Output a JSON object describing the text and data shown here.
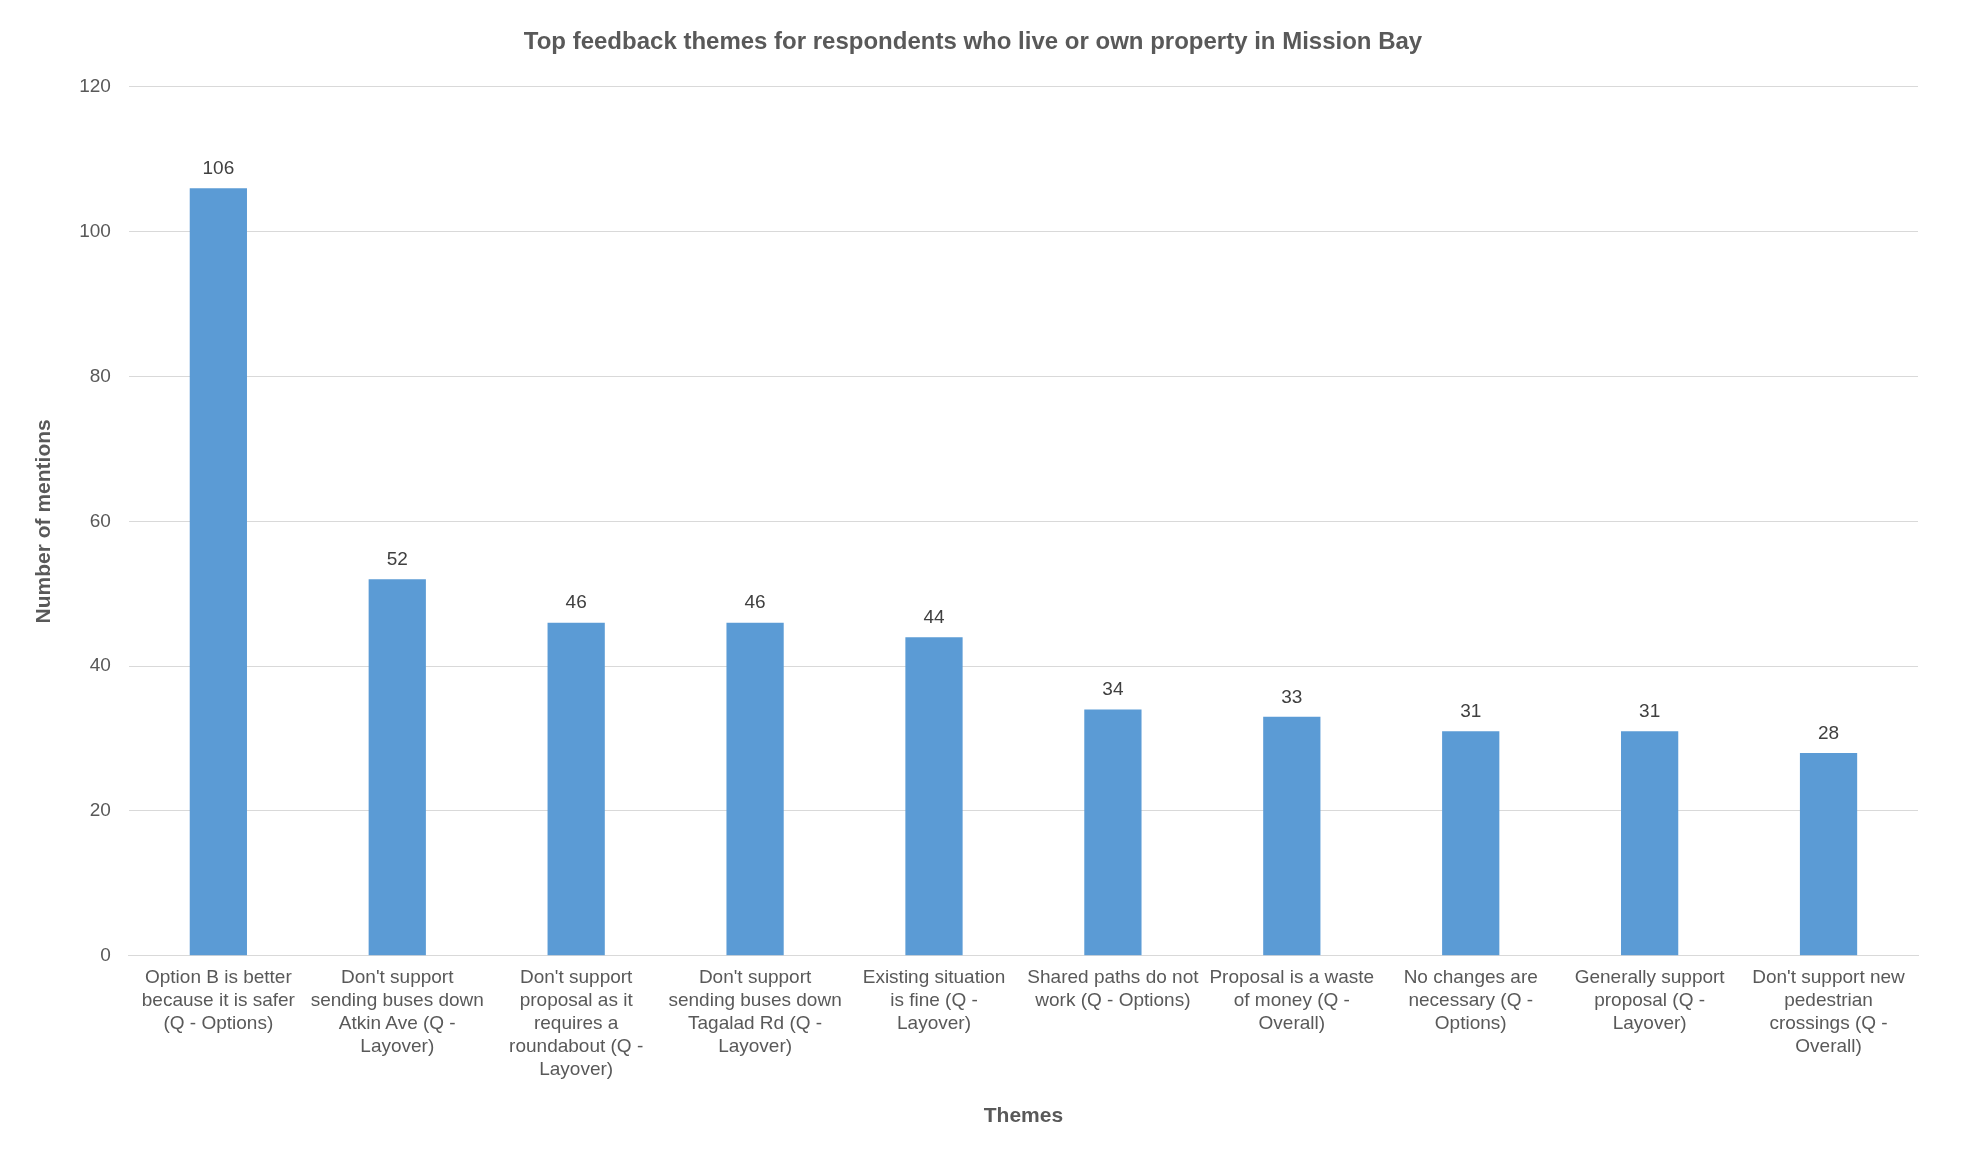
{
  "chart_data": {
    "type": "bar",
    "title": "Top feedback themes for respondents who live or own property in Mission Bay",
    "xlabel": "Themes",
    "ylabel": "Number of mentions",
    "categories": [
      "Option B is better because it is safer (Q - Options)",
      "Don't support sending buses down Atkin Ave (Q - Layover)",
      "Don't support proposal as it requires a roundabout (Q - Layover)",
      "Don't support sending buses down Tagalad Rd (Q - Layover)",
      "Existing situation is fine (Q - Layover)",
      "Shared paths do not work (Q - Options)",
      "Proposal is a waste of money (Q - Overall)",
      "No changes are necessary (Q - Options)",
      "Generally support proposal (Q - Layover)",
      "Don't support new pedestrian crossings (Q - Overall)"
    ],
    "values": [
      106,
      52,
      46,
      46,
      44,
      34,
      33,
      31,
      31,
      28
    ],
    "color": "#5b9bd5",
    "ylim": [
      0,
      120
    ],
    "yticks": [
      0,
      20,
      40,
      60,
      80,
      100,
      120
    ],
    "grid": "y",
    "data_labels": true
  }
}
